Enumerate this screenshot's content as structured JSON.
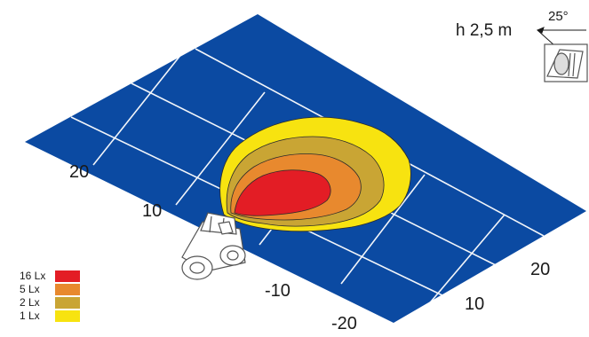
{
  "mount": {
    "height_label": "h 2,5 m",
    "angle_label": "25°"
  },
  "axes": {
    "left_ticks": [
      "20",
      "10",
      "-10",
      "-20"
    ],
    "right_ticks": [
      "20",
      "10"
    ]
  },
  "legend": [
    {
      "label": "16 Lx",
      "color": "#e31d25"
    },
    {
      "label": "5 Lx",
      "color": "#e8892e"
    },
    {
      "label": "2 Lx",
      "color": "#c9a534"
    },
    {
      "label": "1 Lx",
      "color": "#f7e310"
    }
  ],
  "colors": {
    "ground": "#0b4aa2",
    "grid": "#ffffff"
  }
}
